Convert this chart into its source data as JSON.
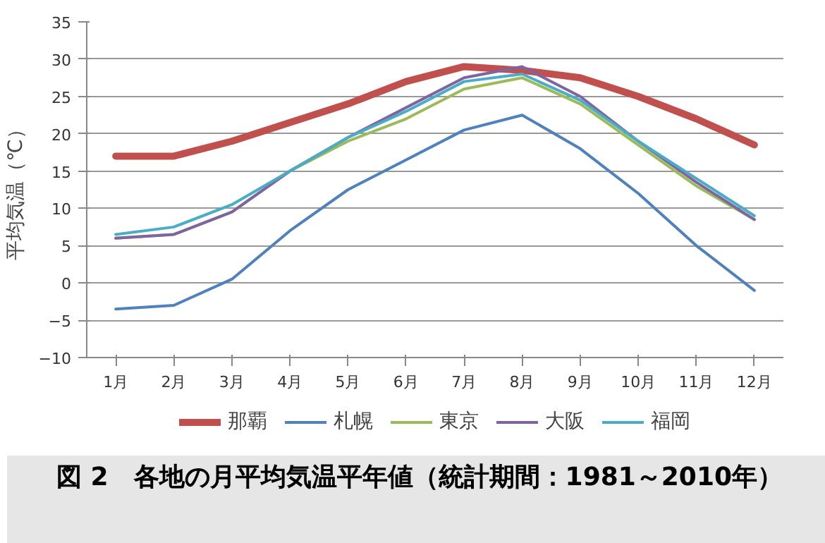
{
  "chart_data": {
    "type": "line",
    "ylabel": "平均気温（℃）",
    "categories": [
      "1月",
      "2月",
      "3月",
      "4月",
      "5月",
      "6月",
      "7月",
      "8月",
      "9月",
      "10月",
      "11月",
      "12月"
    ],
    "series": [
      {
        "name": "那覇",
        "color": "#c0504d",
        "values": [
          17,
          17,
          19,
          21.5,
          24,
          27,
          29,
          28.5,
          27.5,
          25,
          22,
          18.5
        ]
      },
      {
        "name": "札幌",
        "color": "#4f81bd",
        "values": [
          -3.5,
          -3,
          0.5,
          7,
          12.5,
          16.5,
          20.5,
          22.5,
          18,
          12,
          5,
          -1
        ]
      },
      {
        "name": "東京",
        "color": "#9bbb59",
        "values": [
          6,
          6.5,
          9.5,
          15,
          19,
          22,
          26,
          27.5,
          24,
          18.5,
          13,
          8.5
        ]
      },
      {
        "name": "大阪",
        "color": "#8064a2",
        "values": [
          6,
          6.5,
          9.5,
          15,
          19.5,
          23.5,
          27.5,
          29,
          25,
          19,
          13.5,
          8.5
        ]
      },
      {
        "name": "福岡",
        "color": "#4bacc6",
        "values": [
          6.5,
          7.5,
          10.5,
          15,
          19.5,
          23,
          27,
          28,
          24.5,
          19,
          14,
          9
        ]
      }
    ],
    "ylim": [
      -10,
      35
    ],
    "yticks": [
      -10,
      -5,
      0,
      5,
      10,
      15,
      20,
      25,
      30,
      35
    ],
    "grid": "y",
    "legend": "bottom",
    "annotations": [
      "図 2　各地の月平均気温平年値（統計期間：1981～2010年）"
    ]
  }
}
